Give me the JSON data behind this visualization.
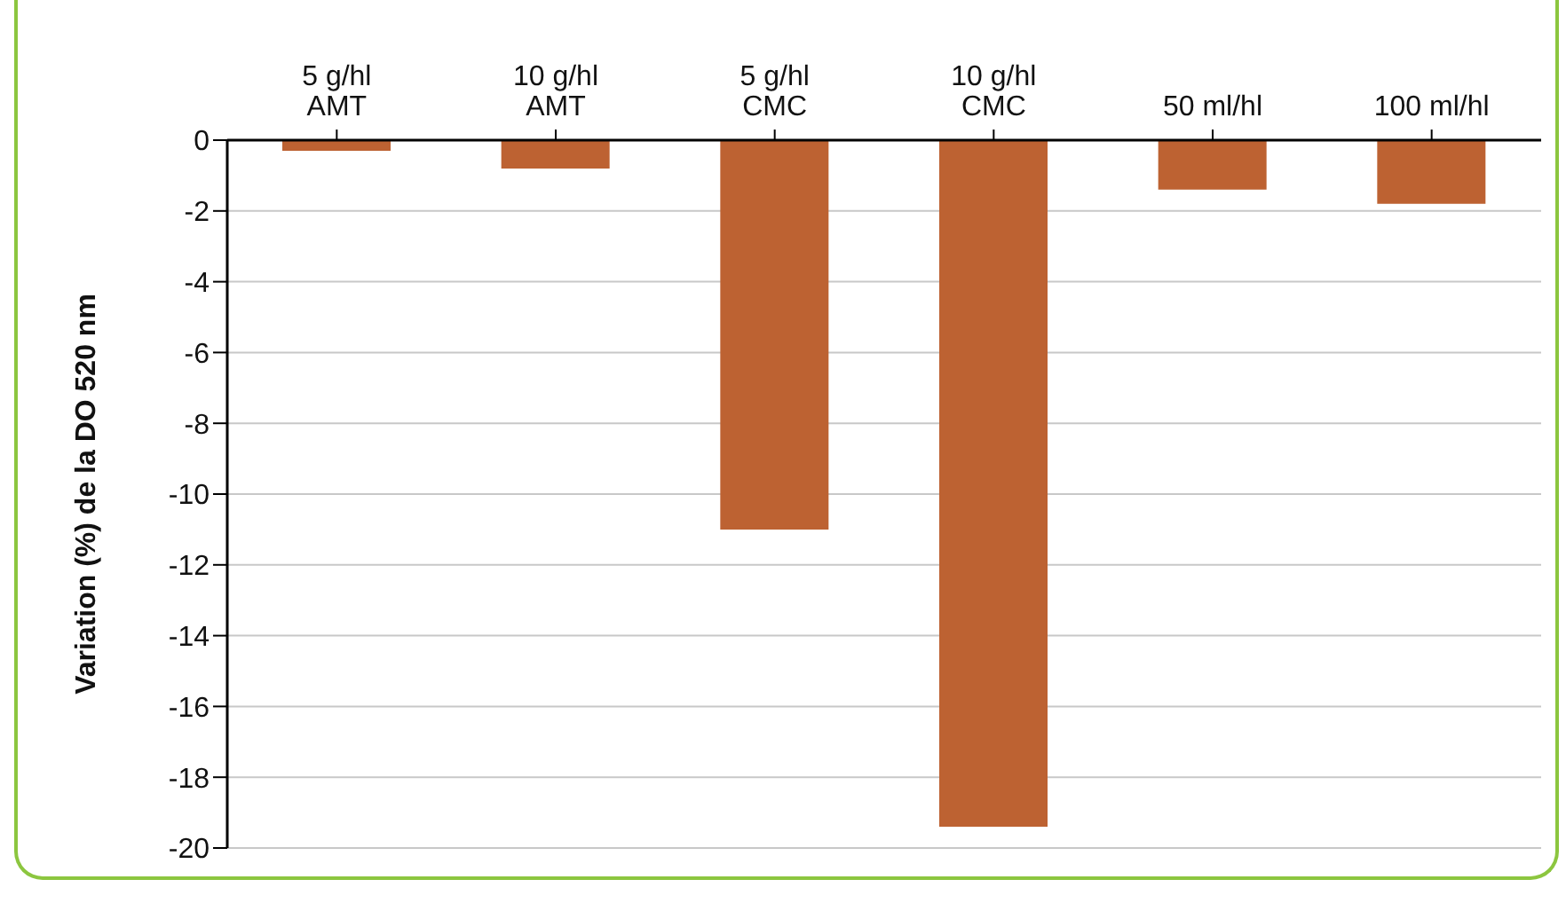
{
  "chart_data": {
    "type": "bar",
    "ylabel": "Variation (%) de la DO 520 nm",
    "categories": [
      "5 g/hl\nAMT",
      "10 g/hl\nAMT",
      "5 g/hl\nCMC",
      "10 g/hl\nCMC",
      "50 ml/hl",
      "100 ml/hl"
    ],
    "values": [
      -0.3,
      -0.8,
      -11,
      -19.4,
      -1.4,
      -1.8
    ],
    "color": "#bd6232",
    "ylim": [
      -20,
      0
    ],
    "yticks": [
      -20,
      -18,
      -16,
      -14,
      -12,
      -10,
      -8,
      -6,
      -4,
      -2,
      0
    ],
    "grid": "y",
    "legend": false
  }
}
